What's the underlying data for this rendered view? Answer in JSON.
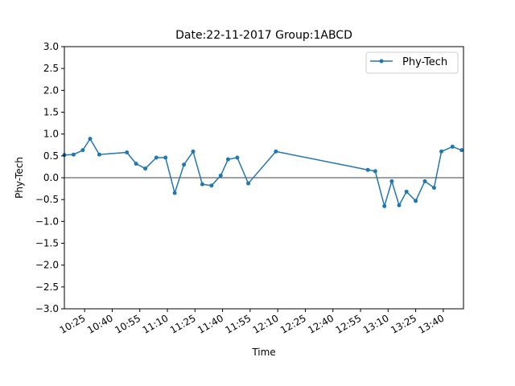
{
  "chart_data": {
    "type": "line",
    "title": "Date:22-11-2017 Group:1ABCD",
    "xlabel": "Time",
    "ylabel": "Phy-Tech",
    "ylim": [
      -3.0,
      3.0
    ],
    "xlim": [
      "10:14",
      "13:51"
    ],
    "yticks": [
      "3.0",
      "2.5",
      "2.0",
      "1.5",
      "1.0",
      "0.5",
      "0.0",
      "−0.5",
      "−1.0",
      "−1.5",
      "−2.0",
      "−2.5",
      "−3.0"
    ],
    "ytick_values": [
      3.0,
      2.5,
      2.0,
      1.5,
      1.0,
      0.5,
      0.0,
      -0.5,
      -1.0,
      -1.5,
      -2.0,
      -2.5,
      -3.0
    ],
    "xticks": [
      "10:25",
      "10:40",
      "10:55",
      "11:10",
      "11:25",
      "11:40",
      "11:55",
      "12:10",
      "12:25",
      "12:40",
      "12:55",
      "13:10",
      "13:25",
      "13:40"
    ],
    "zero_line": true,
    "grid": false,
    "legend_position": "top-right",
    "colors": {
      "series": "#1f77b4",
      "zero_line": "#000000"
    },
    "series": [
      {
        "name": "Phy-Tech",
        "x": [
          "10:14",
          "10:19",
          "10:24",
          "10:28",
          "10:33",
          "10:48",
          "10:53",
          "10:58",
          "11:04",
          "11:09",
          "11:14",
          "11:19",
          "11:24",
          "11:29",
          "11:34",
          "11:39",
          "11:43",
          "11:48",
          "11:54",
          "12:09",
          "12:59",
          "13:03",
          "13:08",
          "13:12",
          "13:16",
          "13:20",
          "13:25",
          "13:30",
          "13:35",
          "13:39",
          "13:45",
          "13:50"
        ],
        "values": [
          0.52,
          0.53,
          0.63,
          0.89,
          0.53,
          0.58,
          0.32,
          0.21,
          0.46,
          0.46,
          -0.35,
          0.3,
          0.6,
          -0.15,
          -0.18,
          0.05,
          0.42,
          0.46,
          -0.13,
          0.6,
          0.18,
          0.15,
          -0.65,
          -0.08,
          -0.63,
          -0.32,
          -0.53,
          -0.08,
          -0.23,
          0.6,
          0.71,
          0.63
        ]
      }
    ]
  }
}
